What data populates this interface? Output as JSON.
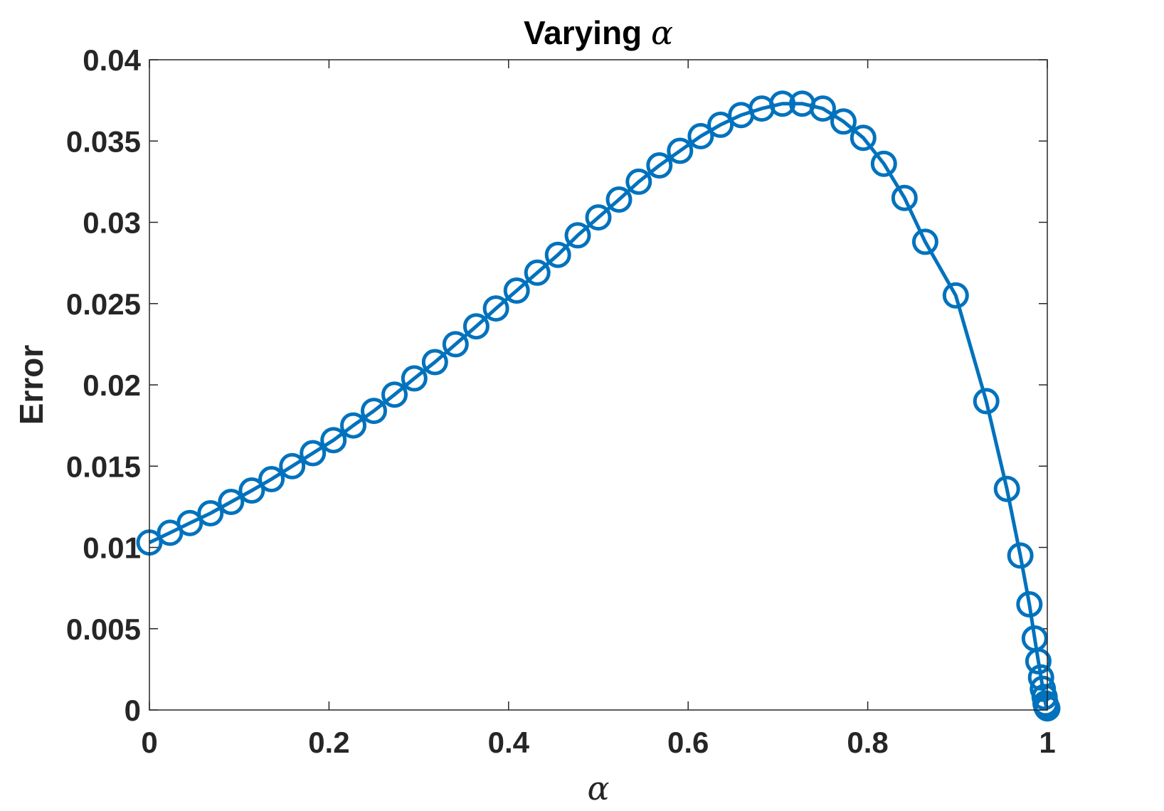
{
  "chart_data": {
    "type": "line",
    "title": "Varying",
    "title_symbol": "α",
    "xlabel": "α",
    "ylabel": "Error",
    "xlim": [
      0,
      1
    ],
    "ylim": [
      0,
      0.04
    ],
    "xticks": [
      "0",
      "0.2",
      "0.4",
      "0.6",
      "0.8",
      "1"
    ],
    "yticks": [
      "0",
      "0.005",
      "0.01",
      "0.015",
      "0.02",
      "0.025",
      "0.03",
      "0.035",
      "0.04"
    ],
    "grid": false,
    "marker": "circle",
    "color": "#0072BD",
    "series": [
      {
        "x": [
          0,
          0.023,
          0.045,
          0.068,
          0.091,
          0.114,
          0.136,
          0.159,
          0.182,
          0.205,
          0.227,
          0.25,
          0.273,
          0.295,
          0.318,
          0.341,
          0.364,
          0.386,
          0.409,
          0.432,
          0.455,
          0.477,
          0.5,
          0.523,
          0.545,
          0.568,
          0.591,
          0.614,
          0.636,
          0.659,
          0.682,
          0.705,
          0.727,
          0.75,
          0.773,
          0.795,
          0.818,
          0.841,
          0.864,
          0.898,
          0.932,
          0.955,
          0.97,
          0.98,
          0.986,
          0.99,
          0.993,
          0.995,
          0.997,
          0.998,
          0.999,
          1.0
        ],
        "y": [
          0.0103,
          0.0109,
          0.0115,
          0.0121,
          0.0128,
          0.0135,
          0.0142,
          0.015,
          0.0158,
          0.0166,
          0.0175,
          0.0184,
          0.0194,
          0.0204,
          0.0214,
          0.0225,
          0.0236,
          0.0247,
          0.0258,
          0.0269,
          0.028,
          0.0292,
          0.0303,
          0.0314,
          0.0325,
          0.0335,
          0.0344,
          0.0353,
          0.036,
          0.0366,
          0.037,
          0.0373,
          0.0373,
          0.037,
          0.0362,
          0.0352,
          0.0336,
          0.0315,
          0.0288,
          0.0255,
          0.019,
          0.0136,
          0.0095,
          0.0065,
          0.0044,
          0.003,
          0.002,
          0.0013,
          0.0008,
          0.0004,
          0.0002,
          0.0001
        ]
      }
    ]
  }
}
